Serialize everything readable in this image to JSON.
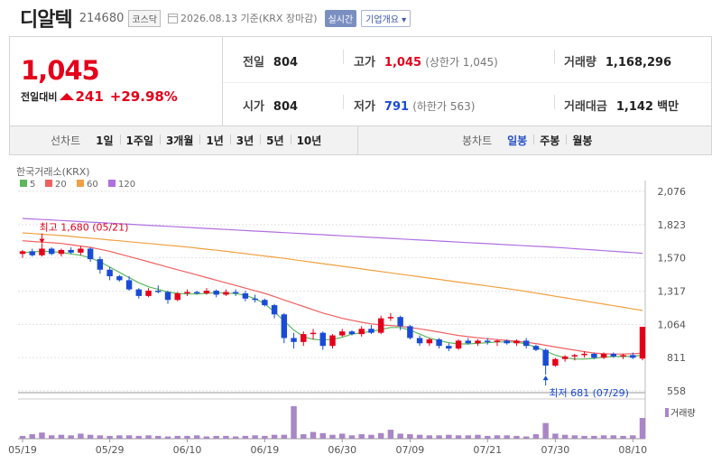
{
  "header": {
    "name": "디알텍",
    "code": "214680",
    "market": "코스닥",
    "date": "2026.08.13 기준(KRX 장마감)",
    "realtime": "실시간",
    "company": "기업개요 ▾"
  },
  "price": {
    "current": "1,045",
    "change_label": "전일대비",
    "change": "241",
    "change_pct": "+29.98%"
  },
  "metrics": {
    "prev_label": "전일",
    "prev": "804",
    "open_label": "시가",
    "open": "804",
    "high_label": "고가",
    "high": "1,045",
    "high_sub": "(상한가 1,045)",
    "low_label": "저가",
    "low": "791",
    "low_sub": "(하한가 563)",
    "volume_label": "거래량",
    "volume": "1,168,296",
    "amount_label": "거래대금",
    "amount": "1,142",
    "amount_unit": "백만"
  },
  "tabs": {
    "line_label": "선차트",
    "periods": [
      "1일",
      "1주일",
      "3개월",
      "1년",
      "3년",
      "5년",
      "10년"
    ],
    "candle_label": "봉차트",
    "candles": [
      "일봉",
      "주봉",
      "월봉"
    ],
    "active_candle": "일봉"
  },
  "colors": {
    "up": "#e4001b",
    "down": "#1a4bd6",
    "ma5": "#5cb85c",
    "ma20": "#f06060",
    "ma60": "#f0a040",
    "ma120": "#b070e0"
  },
  "chart_data": {
    "type": "candlestick",
    "source_label": "한국거래소(KRX)",
    "legend": [
      {
        "name": "5",
        "color": "#5cb85c"
      },
      {
        "name": "20",
        "color": "#f06060"
      },
      {
        "name": "60",
        "color": "#f0a040"
      },
      {
        "name": "120",
        "color": "#b070e0"
      }
    ],
    "y_ticks": [
      "2,076",
      "1,823",
      "1,570",
      "1,317",
      "1,064",
      "811",
      "558"
    ],
    "ylim": [
      558,
      2076
    ],
    "x_labels": [
      "05/19",
      "05/29",
      "06/10",
      "06/19",
      "06/30",
      "07/09",
      "07/21",
      "07/30",
      "08/10"
    ],
    "x_label_index": [
      0,
      9,
      17,
      25,
      33,
      40,
      48,
      55,
      63
    ],
    "high_annotation": "최고 1,680 (05/21)",
    "low_annotation": "최저 681 (07/29)",
    "high_index": 2,
    "high_value": 1680,
    "low_index": 54,
    "low_value": 681,
    "volume_label": "거래량",
    "candles": [
      [
        1600,
        1630,
        1570,
        1620
      ],
      [
        1620,
        1640,
        1580,
        1590
      ],
      [
        1590,
        1680,
        1580,
        1640
      ],
      [
        1640,
        1650,
        1590,
        1600
      ],
      [
        1600,
        1640,
        1580,
        1630
      ],
      [
        1630,
        1650,
        1600,
        1610
      ],
      [
        1610,
        1660,
        1590,
        1640
      ],
      [
        1640,
        1650,
        1540,
        1560
      ],
      [
        1560,
        1580,
        1450,
        1480
      ],
      [
        1480,
        1500,
        1400,
        1430
      ],
      [
        1430,
        1440,
        1390,
        1400
      ],
      [
        1400,
        1430,
        1320,
        1330
      ],
      [
        1330,
        1340,
        1260,
        1280
      ],
      [
        1280,
        1340,
        1270,
        1320
      ],
      [
        1320,
        1360,
        1300,
        1310
      ],
      [
        1310,
        1320,
        1220,
        1250
      ],
      [
        1250,
        1310,
        1240,
        1300
      ],
      [
        1300,
        1330,
        1280,
        1310
      ],
      [
        1310,
        1320,
        1290,
        1300
      ],
      [
        1300,
        1340,
        1290,
        1320
      ],
      [
        1320,
        1330,
        1270,
        1290
      ],
      [
        1290,
        1330,
        1280,
        1310
      ],
      [
        1310,
        1330,
        1280,
        1300
      ],
      [
        1300,
        1320,
        1240,
        1260
      ],
      [
        1260,
        1290,
        1230,
        1250
      ],
      [
        1250,
        1260,
        1200,
        1210
      ],
      [
        1210,
        1220,
        1110,
        1140
      ],
      [
        1140,
        1150,
        920,
        960
      ],
      [
        960,
        1000,
        880,
        930
      ],
      [
        930,
        1010,
        900,
        990
      ],
      [
        990,
        1030,
        950,
        1000
      ],
      [
        1000,
        1010,
        870,
        900
      ],
      [
        900,
        990,
        880,
        980
      ],
      [
        980,
        1030,
        970,
        1010
      ],
      [
        1010,
        1020,
        980,
        990
      ],
      [
        990,
        1050,
        970,
        1030
      ],
      [
        1030,
        1060,
        990,
        1000
      ],
      [
        1000,
        1130,
        990,
        1110
      ],
      [
        1110,
        1150,
        1090,
        1120
      ],
      [
        1120,
        1130,
        1020,
        1050
      ],
      [
        1050,
        1060,
        950,
        960
      ],
      [
        960,
        980,
        900,
        920
      ],
      [
        920,
        960,
        900,
        950
      ],
      [
        950,
        960,
        880,
        900
      ],
      [
        900,
        920,
        860,
        880
      ],
      [
        880,
        950,
        870,
        940
      ],
      [
        940,
        960,
        910,
        920
      ],
      [
        920,
        950,
        900,
        940
      ],
      [
        940,
        960,
        910,
        930
      ],
      [
        930,
        950,
        900,
        940
      ],
      [
        940,
        950,
        910,
        920
      ],
      [
        920,
        950,
        900,
        940
      ],
      [
        940,
        960,
        880,
        900
      ],
      [
        900,
        910,
        860,
        870
      ],
      [
        870,
        880,
        681,
        750
      ],
      [
        750,
        810,
        740,
        800
      ],
      [
        800,
        830,
        780,
        820
      ],
      [
        820,
        840,
        790,
        830
      ],
      [
        830,
        860,
        810,
        840
      ],
      [
        840,
        850,
        800,
        810
      ],
      [
        810,
        850,
        800,
        840
      ],
      [
        840,
        850,
        810,
        820
      ],
      [
        820,
        840,
        800,
        830
      ],
      [
        830,
        850,
        800,
        810
      ],
      [
        804,
        1045,
        791,
        1045
      ]
    ],
    "volume": [
      5,
      8,
      11,
      6,
      7,
      6,
      9,
      7,
      6,
      5,
      6,
      6,
      5,
      6,
      5,
      4,
      5,
      5,
      6,
      4,
      5,
      5,
      4,
      5,
      6,
      5,
      7,
      7,
      58,
      8,
      12,
      10,
      7,
      9,
      6,
      8,
      7,
      10,
      16,
      9,
      8,
      7,
      6,
      6,
      7,
      6,
      6,
      7,
      5,
      6,
      6,
      5,
      4,
      8,
      28,
      9,
      7,
      6,
      5,
      5,
      6,
      6,
      5,
      6,
      37
    ],
    "ma5": [
      1610,
      1615,
      1620,
      1618,
      1612,
      1600,
      1590,
      1570,
      1540,
      1500,
      1460,
      1420,
      1380,
      1350,
      1330,
      1310,
      1300,
      1295,
      1295,
      1300,
      1305,
      1302,
      1298,
      1285,
      1260,
      1220,
      1160,
      1090,
      1020,
      970,
      950,
      945,
      950,
      965,
      990,
      1000,
      1010,
      1025,
      1040,
      1040,
      1020,
      990,
      960,
      940,
      925,
      915,
      915,
      920,
      925,
      930,
      930,
      928,
      915,
      890,
      860,
      830,
      810,
      800,
      800,
      805,
      815,
      820,
      820,
      822,
      830
    ],
    "ma20": [
      1700,
      1695,
      1690,
      1685,
      1680,
      1670,
      1660,
      1650,
      1635,
      1620,
      1600,
      1580,
      1560,
      1540,
      1520,
      1500,
      1480,
      1460,
      1440,
      1420,
      1400,
      1380,
      1360,
      1340,
      1320,
      1300,
      1275,
      1250,
      1225,
      1200,
      1175,
      1150,
      1130,
      1110,
      1095,
      1080,
      1068,
      1060,
      1055,
      1050,
      1040,
      1030,
      1018,
      1005,
      992,
      980,
      970,
      962,
      955,
      948,
      942,
      936,
      928,
      918,
      905,
      892,
      880,
      868,
      856,
      846,
      840,
      838,
      838,
      840,
      845
    ],
    "ma60": [
      1760,
      1755,
      1750,
      1745,
      1740,
      1733,
      1726,
      1720,
      1713,
      1706,
      1700,
      1693,
      1686,
      1680,
      1673,
      1666,
      1660,
      1652,
      1644,
      1636,
      1628,
      1620,
      1611,
      1602,
      1593,
      1584,
      1575,
      1566,
      1556,
      1546,
      1536,
      1526,
      1516,
      1506,
      1496,
      1486,
      1476,
      1466,
      1456,
      1446,
      1436,
      1426,
      1416,
      1406,
      1396,
      1386,
      1376,
      1366,
      1356,
      1346,
      1336,
      1326,
      1314,
      1302,
      1290,
      1278,
      1266,
      1254,
      1242,
      1230,
      1218,
      1206,
      1194,
      1182,
      1170
    ],
    "ma120": [
      1870,
      1866,
      1862,
      1858,
      1854,
      1850,
      1846,
      1842,
      1838,
      1834,
      1830,
      1826,
      1822,
      1818,
      1814,
      1810,
      1806,
      1802,
      1798,
      1794,
      1790,
      1786,
      1782,
      1778,
      1774,
      1770,
      1766,
      1762,
      1758,
      1754,
      1750,
      1746,
      1742,
      1738,
      1734,
      1730,
      1726,
      1722,
      1718,
      1714,
      1710,
      1706,
      1702,
      1698,
      1694,
      1690,
      1686,
      1682,
      1678,
      1674,
      1670,
      1666,
      1662,
      1658,
      1654,
      1650,
      1645,
      1640,
      1635,
      1630,
      1625,
      1620,
      1615,
      1610,
      1605
    ]
  }
}
